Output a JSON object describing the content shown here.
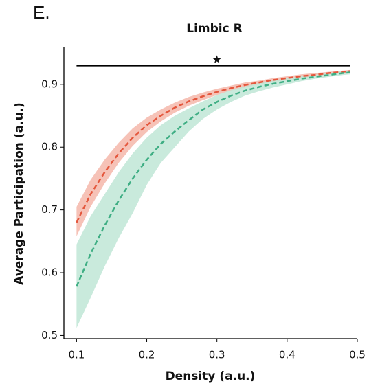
{
  "panel_label": "E.",
  "chart_data": {
    "type": "line",
    "title": "Limbic R",
    "x_label": "Density (a.u.)",
    "y_label": "Average Participation (a.u.)",
    "x": [
      0.1,
      0.12,
      0.14,
      0.16,
      0.18,
      0.2,
      0.22,
      0.24,
      0.26,
      0.28,
      0.3,
      0.32,
      0.34,
      0.36,
      0.38,
      0.4,
      0.42,
      0.44,
      0.46,
      0.48,
      0.49
    ],
    "series": [
      {
        "color": "#e4573d",
        "band_color": "#f4b7aa",
        "values": [
          0.68,
          0.725,
          0.76,
          0.79,
          0.815,
          0.835,
          0.85,
          0.863,
          0.873,
          0.881,
          0.888,
          0.894,
          0.899,
          0.903,
          0.907,
          0.91,
          0.913,
          0.915,
          0.918,
          0.92,
          0.921
        ],
        "lower": [
          0.658,
          0.705,
          0.742,
          0.775,
          0.802,
          0.824,
          0.841,
          0.855,
          0.866,
          0.875,
          0.883,
          0.89,
          0.895,
          0.9,
          0.904,
          0.907,
          0.91,
          0.913,
          0.916,
          0.918,
          0.919
        ],
        "upper": [
          0.705,
          0.748,
          0.78,
          0.807,
          0.83,
          0.847,
          0.86,
          0.871,
          0.88,
          0.887,
          0.893,
          0.898,
          0.903,
          0.906,
          0.91,
          0.913,
          0.916,
          0.918,
          0.92,
          0.922,
          0.923
        ]
      },
      {
        "color": "#3fae84",
        "band_color": "#bfe6d6",
        "values": [
          0.578,
          0.63,
          0.675,
          0.715,
          0.75,
          0.78,
          0.805,
          0.825,
          0.843,
          0.86,
          0.872,
          0.882,
          0.89,
          0.896,
          0.901,
          0.905,
          0.909,
          0.912,
          0.915,
          0.918,
          0.919
        ],
        "lower": [
          0.512,
          0.56,
          0.61,
          0.655,
          0.695,
          0.74,
          0.775,
          0.8,
          0.825,
          0.845,
          0.86,
          0.872,
          0.882,
          0.889,
          0.895,
          0.9,
          0.905,
          0.909,
          0.912,
          0.915,
          0.916
        ],
        "upper": [
          0.645,
          0.69,
          0.725,
          0.76,
          0.79,
          0.815,
          0.835,
          0.85,
          0.862,
          0.873,
          0.883,
          0.891,
          0.897,
          0.902,
          0.906,
          0.91,
          0.913,
          0.915,
          0.918,
          0.921,
          0.922
        ]
      }
    ],
    "significance_line": {
      "y": 0.93,
      "x": [
        0.1,
        0.49
      ],
      "label": "★",
      "label_x": 0.3
    },
    "xlim": [
      0.082,
      0.5
    ],
    "ylim": [
      0.495,
      0.96
    ],
    "xticks": [
      0.1,
      0.2,
      0.3,
      0.4,
      0.5
    ],
    "yticks": [
      0.5,
      0.6,
      0.7,
      0.8,
      0.9
    ],
    "grid": false
  }
}
